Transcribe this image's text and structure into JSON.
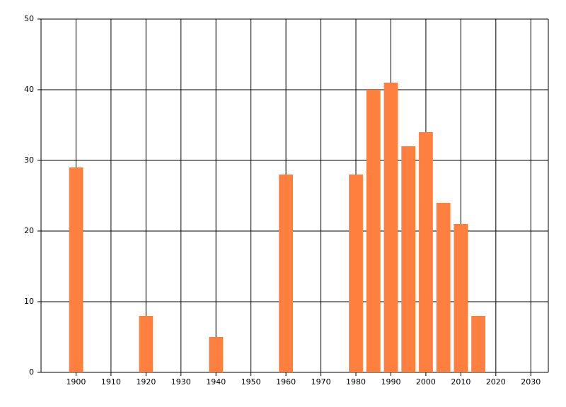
{
  "chart_data": {
    "type": "bar",
    "x": [
      1900,
      1920,
      1940,
      1960,
      1980,
      1985,
      1990,
      1995,
      2000,
      2005,
      2010,
      2015
    ],
    "values": [
      29,
      8,
      5,
      28,
      28,
      40,
      41,
      32,
      34,
      24,
      21,
      8
    ],
    "color": "#ff7f3f",
    "xlim": [
      1890,
      2035
    ],
    "xticks": [
      1900,
      1910,
      1920,
      1930,
      1940,
      1950,
      1960,
      1970,
      1980,
      1990,
      2000,
      2010,
      2020,
      2030
    ],
    "ylim": [
      0,
      50
    ],
    "yticks": [
      0,
      10,
      20,
      30,
      40,
      50
    ],
    "grid": true
  }
}
